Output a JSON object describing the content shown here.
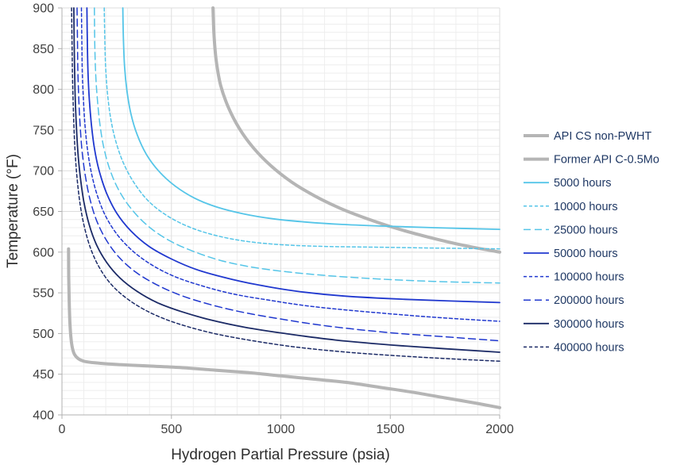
{
  "chart_data": {
    "type": "line",
    "title": "",
    "xlabel": "Hydrogen Partial Pressure (psia)",
    "ylabel": "Temperature (°F)",
    "xlim": [
      0,
      2000
    ],
    "ylim": [
      400,
      900
    ],
    "x_ticks": [
      0,
      500,
      1000,
      1500,
      2000
    ],
    "y_ticks": [
      400,
      450,
      500,
      550,
      600,
      650,
      700,
      750,
      800,
      850,
      900
    ],
    "x_minor_grid_step": 100,
    "y_minor_grid_step": 10,
    "grid": true,
    "legend_position": "right",
    "colors": {
      "gray": "#b5b5b5",
      "light_blue": "#55c5e8",
      "blue": "#2038cf",
      "navy": "#1b2a66",
      "legend_text": "#1f3864",
      "axis_line": "#b0b0b0",
      "grid_minor": "#eeeeee",
      "grid_major": "#dddddd"
    },
    "series": [
      {
        "name": "API CS non-PWHT",
        "color": "#b5b5b5",
        "width": 4,
        "dash": null,
        "points": [
          [
            30,
            604
          ],
          [
            31,
            570
          ],
          [
            33,
            540
          ],
          [
            36,
            515
          ],
          [
            41,
            495
          ],
          [
            48,
            482
          ],
          [
            58,
            474
          ],
          [
            75,
            469
          ],
          [
            100,
            466
          ],
          [
            150,
            464
          ],
          [
            250,
            462
          ],
          [
            400,
            460
          ],
          [
            550,
            458
          ],
          [
            700,
            455
          ],
          [
            850,
            452
          ],
          [
            1000,
            448
          ],
          [
            1150,
            444
          ],
          [
            1300,
            440
          ],
          [
            1450,
            434
          ],
          [
            1600,
            428
          ],
          [
            1750,
            421
          ],
          [
            1900,
            414
          ],
          [
            2000,
            409
          ]
        ]
      },
      {
        "name": "Former API C-0.5Mo",
        "color": "#b5b5b5",
        "width": 4,
        "dash": null,
        "points": [
          [
            690,
            900
          ],
          [
            695,
            865
          ],
          [
            705,
            835
          ],
          [
            725,
            805
          ],
          [
            760,
            778
          ],
          [
            810,
            752
          ],
          [
            875,
            728
          ],
          [
            955,
            706
          ],
          [
            1050,
            686
          ],
          [
            1155,
            669
          ],
          [
            1270,
            654
          ],
          [
            1395,
            641
          ],
          [
            1530,
            629
          ],
          [
            1680,
            618
          ],
          [
            1840,
            608
          ],
          [
            2000,
            600
          ]
        ]
      },
      {
        "name": "5000 hours",
        "color": "#55c5e8",
        "width": 1.8,
        "dash": null,
        "points": [
          [
            278,
            900
          ],
          [
            281,
            860
          ],
          [
            286,
            828
          ],
          [
            297,
            798
          ],
          [
            315,
            770
          ],
          [
            344,
            744
          ],
          [
            386,
            720
          ],
          [
            444,
            699
          ],
          [
            518,
            681
          ],
          [
            608,
            666
          ],
          [
            712,
            655
          ],
          [
            830,
            647
          ],
          [
            962,
            641
          ],
          [
            1110,
            637
          ],
          [
            1280,
            634
          ],
          [
            1470,
            632
          ],
          [
            1700,
            630
          ],
          [
            2000,
            628
          ]
        ]
      },
      {
        "name": "10000 hours",
        "color": "#55c5e8",
        "width": 1.5,
        "dash": "4 3",
        "points": [
          [
            193,
            900
          ],
          [
            196,
            858
          ],
          [
            200,
            825
          ],
          [
            208,
            795
          ],
          [
            222,
            765
          ],
          [
            245,
            737
          ],
          [
            280,
            710
          ],
          [
            330,
            685
          ],
          [
            398,
            662
          ],
          [
            485,
            644
          ],
          [
            590,
            630
          ],
          [
            710,
            620
          ],
          [
            850,
            613
          ],
          [
            1010,
            609
          ],
          [
            1200,
            607
          ],
          [
            1450,
            606
          ],
          [
            1700,
            605
          ],
          [
            2000,
            604
          ]
        ]
      },
      {
        "name": "25000 hours",
        "color": "#55c5e8",
        "width": 1.5,
        "dash": "9 5",
        "points": [
          [
            148,
            900
          ],
          [
            150,
            855
          ],
          [
            154,
            820
          ],
          [
            161,
            790
          ],
          [
            172,
            760
          ],
          [
            190,
            730
          ],
          [
            218,
            702
          ],
          [
            260,
            676
          ],
          [
            320,
            652
          ],
          [
            398,
            631
          ],
          [
            492,
            614
          ],
          [
            600,
            601
          ],
          [
            722,
            590
          ],
          [
            860,
            582
          ],
          [
            1020,
            576
          ],
          [
            1220,
            571
          ],
          [
            1450,
            567
          ],
          [
            1700,
            564
          ],
          [
            2000,
            562
          ]
        ]
      },
      {
        "name": "50000 hours",
        "color": "#2038cf",
        "width": 1.8,
        "dash": null,
        "points": [
          [
            114,
            900
          ],
          [
            116,
            855
          ],
          [
            119,
            820
          ],
          [
            125,
            788
          ],
          [
            134,
            758
          ],
          [
            148,
            728
          ],
          [
            170,
            700
          ],
          [
            203,
            673
          ],
          [
            250,
            648
          ],
          [
            315,
            626
          ],
          [
            398,
            607
          ],
          [
            497,
            592
          ],
          [
            610,
            579
          ],
          [
            740,
            569
          ],
          [
            890,
            560
          ],
          [
            1070,
            552
          ],
          [
            1290,
            546
          ],
          [
            1570,
            542
          ],
          [
            2000,
            538
          ]
        ]
      },
      {
        "name": "100000 hours",
        "color": "#2038cf",
        "width": 1.5,
        "dash": "4 3",
        "points": [
          [
            89,
            900
          ],
          [
            91,
            855
          ],
          [
            93,
            820
          ],
          [
            98,
            788
          ],
          [
            105,
            757
          ],
          [
            116,
            727
          ],
          [
            134,
            698
          ],
          [
            161,
            670
          ],
          [
            200,
            644
          ],
          [
            254,
            621
          ],
          [
            325,
            601
          ],
          [
            412,
            584
          ],
          [
            515,
            570
          ],
          [
            635,
            559
          ],
          [
            775,
            549
          ],
          [
            945,
            541
          ],
          [
            1150,
            533
          ],
          [
            1420,
            526
          ],
          [
            1700,
            520
          ],
          [
            2000,
            515
          ]
        ]
      },
      {
        "name": "200000 hours",
        "color": "#2038cf",
        "width": 1.5,
        "dash": "9 5",
        "points": [
          [
            69,
            900
          ],
          [
            71,
            855
          ],
          [
            73,
            820
          ],
          [
            77,
            787
          ],
          [
            83,
            755
          ],
          [
            92,
            724
          ],
          [
            106,
            695
          ],
          [
            127,
            666
          ],
          [
            158,
            639
          ],
          [
            202,
            615
          ],
          [
            260,
            594
          ],
          [
            334,
            576
          ],
          [
            425,
            561
          ],
          [
            532,
            548
          ],
          [
            658,
            537
          ],
          [
            810,
            527
          ],
          [
            995,
            518
          ],
          [
            1220,
            509
          ],
          [
            1500,
            501
          ],
          [
            1750,
            496
          ],
          [
            2000,
            491
          ]
        ]
      },
      {
        "name": "300000 hours",
        "color": "#1b2a66",
        "width": 1.8,
        "dash": null,
        "points": [
          [
            54,
            900
          ],
          [
            56,
            855
          ],
          [
            58,
            820
          ],
          [
            61,
            786
          ],
          [
            66,
            754
          ],
          [
            73,
            722
          ],
          [
            84,
            692
          ],
          [
            100,
            662
          ],
          [
            124,
            634
          ],
          [
            158,
            609
          ],
          [
            205,
            587
          ],
          [
            266,
            568
          ],
          [
            342,
            552
          ],
          [
            435,
            538
          ],
          [
            545,
            527
          ],
          [
            675,
            517
          ],
          [
            830,
            508
          ],
          [
            1020,
            500
          ],
          [
            1250,
            492
          ],
          [
            1550,
            485
          ],
          [
            2000,
            477
          ]
        ]
      },
      {
        "name": "400000 hours",
        "color": "#1b2a66",
        "width": 1.5,
        "dash": "4 3",
        "points": [
          [
            44,
            900
          ],
          [
            46,
            855
          ],
          [
            48,
            818
          ],
          [
            51,
            784
          ],
          [
            55,
            751
          ],
          [
            61,
            719
          ],
          [
            70,
            688
          ],
          [
            84,
            657
          ],
          [
            104,
            629
          ],
          [
            133,
            603
          ],
          [
            173,
            580
          ],
          [
            226,
            560
          ],
          [
            292,
            544
          ],
          [
            372,
            530
          ],
          [
            468,
            518
          ],
          [
            580,
            508
          ],
          [
            712,
            499
          ],
          [
            875,
            491
          ],
          [
            1080,
            483
          ],
          [
            1350,
            476
          ],
          [
            1700,
            470
          ],
          [
            2000,
            466
          ]
        ]
      }
    ]
  }
}
